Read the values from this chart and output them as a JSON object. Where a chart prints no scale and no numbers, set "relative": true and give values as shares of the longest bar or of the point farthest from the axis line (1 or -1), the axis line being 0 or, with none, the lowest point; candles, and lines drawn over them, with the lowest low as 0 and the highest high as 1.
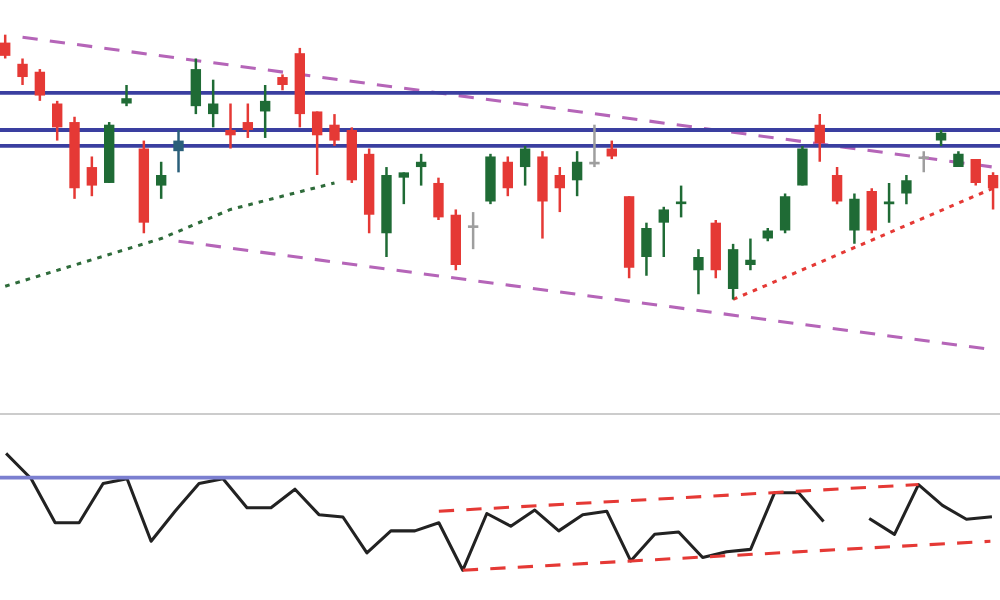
{
  "chart_data": [
    {
      "type": "candlestick",
      "relative": true,
      "categories": [
        null,
        null,
        null,
        null,
        null,
        null,
        null,
        null,
        null,
        null,
        null,
        null,
        null,
        null,
        null,
        null,
        null,
        null,
        null,
        null,
        null,
        null,
        null,
        null,
        null,
        null,
        null,
        null,
        null,
        null,
        null,
        null,
        null,
        null,
        null,
        null,
        null,
        null,
        null,
        null,
        null,
        null,
        null,
        null,
        null,
        null,
        null,
        null,
        null,
        null,
        null,
        null,
        null,
        null,
        null,
        null,
        null,
        null
      ],
      "ohlc": [
        [
          0.97,
          1.0,
          0.91,
          0.92
        ],
        [
          0.89,
          0.91,
          0.81,
          0.84
        ],
        [
          0.86,
          0.87,
          0.75,
          0.77
        ],
        [
          0.74,
          0.75,
          0.6,
          0.65
        ],
        [
          0.67,
          0.69,
          0.38,
          0.42
        ],
        [
          0.5,
          0.54,
          0.39,
          0.43
        ],
        [
          0.44,
          0.67,
          0.44,
          0.66
        ],
        [
          0.74,
          0.81,
          0.73,
          0.76
        ],
        [
          0.57,
          0.6,
          0.25,
          0.29
        ],
        [
          0.43,
          0.52,
          0.38,
          0.47
        ],
        [
          0.56,
          0.64,
          0.48,
          0.6
        ],
        [
          0.73,
          0.91,
          0.7,
          0.87
        ],
        [
          0.7,
          0.83,
          0.65,
          0.74
        ],
        [
          0.64,
          0.74,
          0.57,
          0.62
        ],
        [
          0.67,
          0.74,
          0.61,
          0.64
        ],
        [
          0.71,
          0.81,
          0.61,
          0.75
        ],
        [
          0.84,
          0.85,
          0.79,
          0.81
        ],
        [
          0.93,
          0.95,
          0.65,
          0.7
        ],
        [
          0.71,
          0.71,
          0.47,
          0.62
        ],
        [
          0.66,
          0.7,
          0.58,
          0.6
        ],
        [
          0.64,
          0.65,
          0.44,
          0.45
        ],
        [
          0.55,
          0.57,
          0.25,
          0.32
        ],
        [
          0.25,
          0.5,
          0.16,
          0.47
        ],
        [
          0.46,
          0.48,
          0.36,
          0.48
        ],
        [
          0.5,
          0.55,
          0.43,
          0.52
        ],
        [
          0.44,
          0.46,
          0.3,
          0.31
        ],
        [
          0.32,
          0.34,
          0.11,
          0.13
        ],
        [
          0.27,
          0.33,
          0.19,
          0.28
        ],
        [
          0.37,
          0.55,
          0.36,
          0.54
        ],
        [
          0.52,
          0.54,
          0.39,
          0.42
        ],
        [
          0.5,
          0.58,
          0.43,
          0.57
        ],
        [
          0.54,
          0.56,
          0.23,
          0.37
        ],
        [
          0.47,
          0.5,
          0.33,
          0.42
        ],
        [
          0.45,
          0.56,
          0.39,
          0.52
        ],
        [
          0.51,
          0.66,
          0.5,
          0.52
        ],
        [
          0.57,
          0.6,
          0.53,
          0.54
        ],
        [
          0.39,
          0.39,
          0.08,
          0.12
        ],
        [
          0.16,
          0.29,
          0.09,
          0.27
        ],
        [
          0.29,
          0.35,
          0.16,
          0.34
        ],
        [
          0.36,
          0.43,
          0.31,
          0.37
        ],
        [
          0.11,
          0.19,
          0.02,
          0.16
        ],
        [
          0.29,
          0.3,
          0.08,
          0.11
        ],
        [
          0.04,
          0.21,
          0,
          0.19
        ],
        [
          0.13,
          0.23,
          0.11,
          0.15
        ],
        [
          0.23,
          0.27,
          0.22,
          0.26
        ],
        [
          0.26,
          0.4,
          0.25,
          0.39
        ],
        [
          0.43,
          0.58,
          0.43,
          0.57
        ],
        [
          0.66,
          0.7,
          0.52,
          0.59
        ],
        [
          0.47,
          0.5,
          0.36,
          0.37
        ],
        [
          0.26,
          0.4,
          0.21,
          0.38
        ],
        [
          0.41,
          0.42,
          0.25,
          0.26
        ],
        [
          0.36,
          0.44,
          0.29,
          0.37
        ],
        [
          0.4,
          0.47,
          0.36,
          0.45
        ],
        [
          0.53,
          0.56,
          0.48,
          0.54
        ],
        [
          0.6,
          0.64,
          0.58,
          0.63
        ],
        [
          0.5,
          0.56,
          0.5,
          0.55
        ],
        [
          0.53,
          0.53,
          0.43,
          0.44
        ],
        [
          0.47,
          0.48,
          0.34,
          0.42
        ]
      ],
      "colors": [
        "#e53935",
        "#e53935",
        "#e53935",
        "#e53935",
        "#e53935",
        "#e53935",
        "#1f6b35",
        "#1f6b35",
        "#e53935",
        "#1f6b35",
        "#2a5f7a",
        "#1f6b35",
        "#1f6b35",
        "#e53935",
        "#e53935",
        "#1f6b35",
        "#e53935",
        "#e53935",
        "#e53935",
        "#e53935",
        "#e53935",
        "#e53935",
        "#1f6b35",
        "#1f6b35",
        "#1f6b35",
        "#e53935",
        "#e53935",
        "#9e9e9e",
        "#1f6b35",
        "#e53935",
        "#1f6b35",
        "#e53935",
        "#e53935",
        "#1f6b35",
        "#9e9e9e",
        "#e53935",
        "#e53935",
        "#1f6b35",
        "#1f6b35",
        "#1f6b35",
        "#1f6b35",
        "#e53935",
        "#1f6b35",
        "#1f6b35",
        "#1f6b35",
        "#1f6b35",
        "#1f6b35",
        "#e53935",
        "#e53935",
        "#1f6b35",
        "#e53935",
        "#1f6b35",
        "#1f6b35",
        "#9e9e9e",
        "#1f6b35",
        "#1f6b35",
        "#e53935",
        "#e53935"
      ],
      "ref_lines": [
        {
          "axis": "y",
          "value": 0.78,
          "color": "#3a3fa0"
        },
        {
          "axis": "y",
          "value": 0.64,
          "color": "#3a3fa0"
        },
        {
          "axis": "y",
          "value": 0.58,
          "color": "#3a3fa0"
        }
      ],
      "series": [
        {
          "type": "line",
          "color": "#b565b8",
          "line_style": "dashed",
          "values": [
            null,
            0.99,
            null,
            null,
            null,
            null,
            null,
            null,
            null,
            null,
            null,
            null,
            null,
            null,
            null,
            null,
            null,
            null,
            null,
            null,
            null,
            null,
            null,
            null,
            null,
            null,
            null,
            null,
            null,
            null,
            null,
            null,
            null,
            null,
            null,
            null,
            null,
            null,
            null,
            null,
            null,
            null,
            null,
            null,
            null,
            null,
            null,
            null,
            null,
            null,
            null,
            null,
            null,
            null,
            null,
            null,
            null,
            0.5
          ]
        },
        {
          "type": "line",
          "color": "#b565b8",
          "line_style": "dashed",
          "values": [
            null,
            null,
            null,
            null,
            null,
            null,
            null,
            null,
            null,
            null,
            0.22,
            null,
            null,
            null,
            null,
            null,
            null,
            null,
            null,
            null,
            null,
            null,
            null,
            null,
            null,
            null,
            null,
            null,
            null,
            null,
            null,
            null,
            null,
            null,
            null,
            null,
            null,
            null,
            null,
            null,
            null,
            null,
            null,
            null,
            null,
            null,
            null,
            null,
            null,
            null,
            null,
            null,
            null,
            null,
            null,
            null,
            null,
            -0.19
          ]
        },
        {
          "type": "line",
          "color": "#e53935",
          "line_style": "dotted",
          "values": [
            null,
            null,
            null,
            null,
            null,
            null,
            null,
            null,
            null,
            null,
            null,
            null,
            null,
            null,
            null,
            null,
            null,
            null,
            null,
            null,
            null,
            null,
            null,
            null,
            null,
            null,
            null,
            null,
            null,
            null,
            null,
            null,
            null,
            null,
            null,
            null,
            null,
            null,
            null,
            null,
            null,
            null,
            0,
            null,
            null,
            null,
            null,
            null,
            null,
            null,
            null,
            null,
            null,
            null,
            null,
            null,
            null,
            0.42
          ]
        },
        {
          "type": "line",
          "color": "#2e6b3a",
          "line_style": "dotted",
          "values": [
            0.05,
            null,
            null,
            null,
            null,
            null,
            null,
            null,
            null,
            0.23,
            null,
            null,
            null,
            0.34,
            null,
            null,
            null,
            null,
            null,
            0.44,
            null,
            null,
            null,
            null,
            null,
            null,
            null,
            null,
            null,
            null,
            null,
            null,
            null,
            null,
            null,
            null,
            null,
            null,
            null,
            null,
            null,
            null,
            null,
            null,
            null,
            null,
            null,
            null,
            null,
            null,
            null,
            null,
            null,
            null,
            null,
            null,
            null,
            null
          ]
        }
      ]
    },
    {
      "type": "line",
      "relative": true,
      "categories": [
        null,
        null,
        null,
        null,
        null,
        null,
        null,
        null,
        null,
        null,
        null,
        null,
        null,
        null,
        null,
        null,
        null,
        null,
        null,
        null,
        null,
        null,
        null,
        null,
        null,
        null,
        null,
        null,
        null,
        null,
        null,
        null,
        null,
        null,
        null,
        null,
        null,
        null,
        null,
        null,
        null,
        null
      ],
      "ref_lines": [
        {
          "axis": "y",
          "value": 0.8,
          "color": "#7b7fd0"
        }
      ],
      "series": [
        {
          "color": "#222222",
          "line_style": "solid",
          "values": [
            1,
            0.79,
            0.41,
            0.41,
            0.75,
            0.79,
            0.25,
            0.51,
            0.75,
            0.79,
            0.54,
            0.54,
            0.7,
            0.48,
            0.46,
            0.15,
            0.34,
            0.34,
            0.41,
            0,
            0.49,
            0.38,
            0.52,
            0.34,
            0.48,
            0.51,
            0.08,
            0.31,
            0.33,
            0.11,
            0.16,
            0.18,
            0.67,
            0.67,
            0.43,
            null,
            0.44,
            0.31,
            0.74,
            0.56,
            0.44,
            0.46
          ]
        },
        {
          "color": "#e53935",
          "line_style": "dashed",
          "values": [
            null,
            null,
            null,
            null,
            null,
            null,
            null,
            null,
            null,
            null,
            null,
            null,
            null,
            null,
            null,
            null,
            null,
            null,
            0.51,
            null,
            null,
            null,
            null,
            null,
            null,
            null,
            null,
            null,
            null,
            null,
            null,
            null,
            null,
            null,
            null,
            null,
            null,
            null,
            0.74,
            null,
            null,
            null
          ]
        },
        {
          "color": "#e53935",
          "line_style": "dashed",
          "values": [
            null,
            null,
            null,
            null,
            null,
            null,
            null,
            null,
            null,
            null,
            null,
            null,
            null,
            null,
            null,
            null,
            null,
            null,
            null,
            0,
            null,
            null,
            null,
            null,
            null,
            null,
            null,
            null,
            null,
            null,
            null,
            null,
            null,
            null,
            null,
            null,
            null,
            null,
            null,
            null,
            null,
            0.25
          ]
        }
      ]
    }
  ]
}
